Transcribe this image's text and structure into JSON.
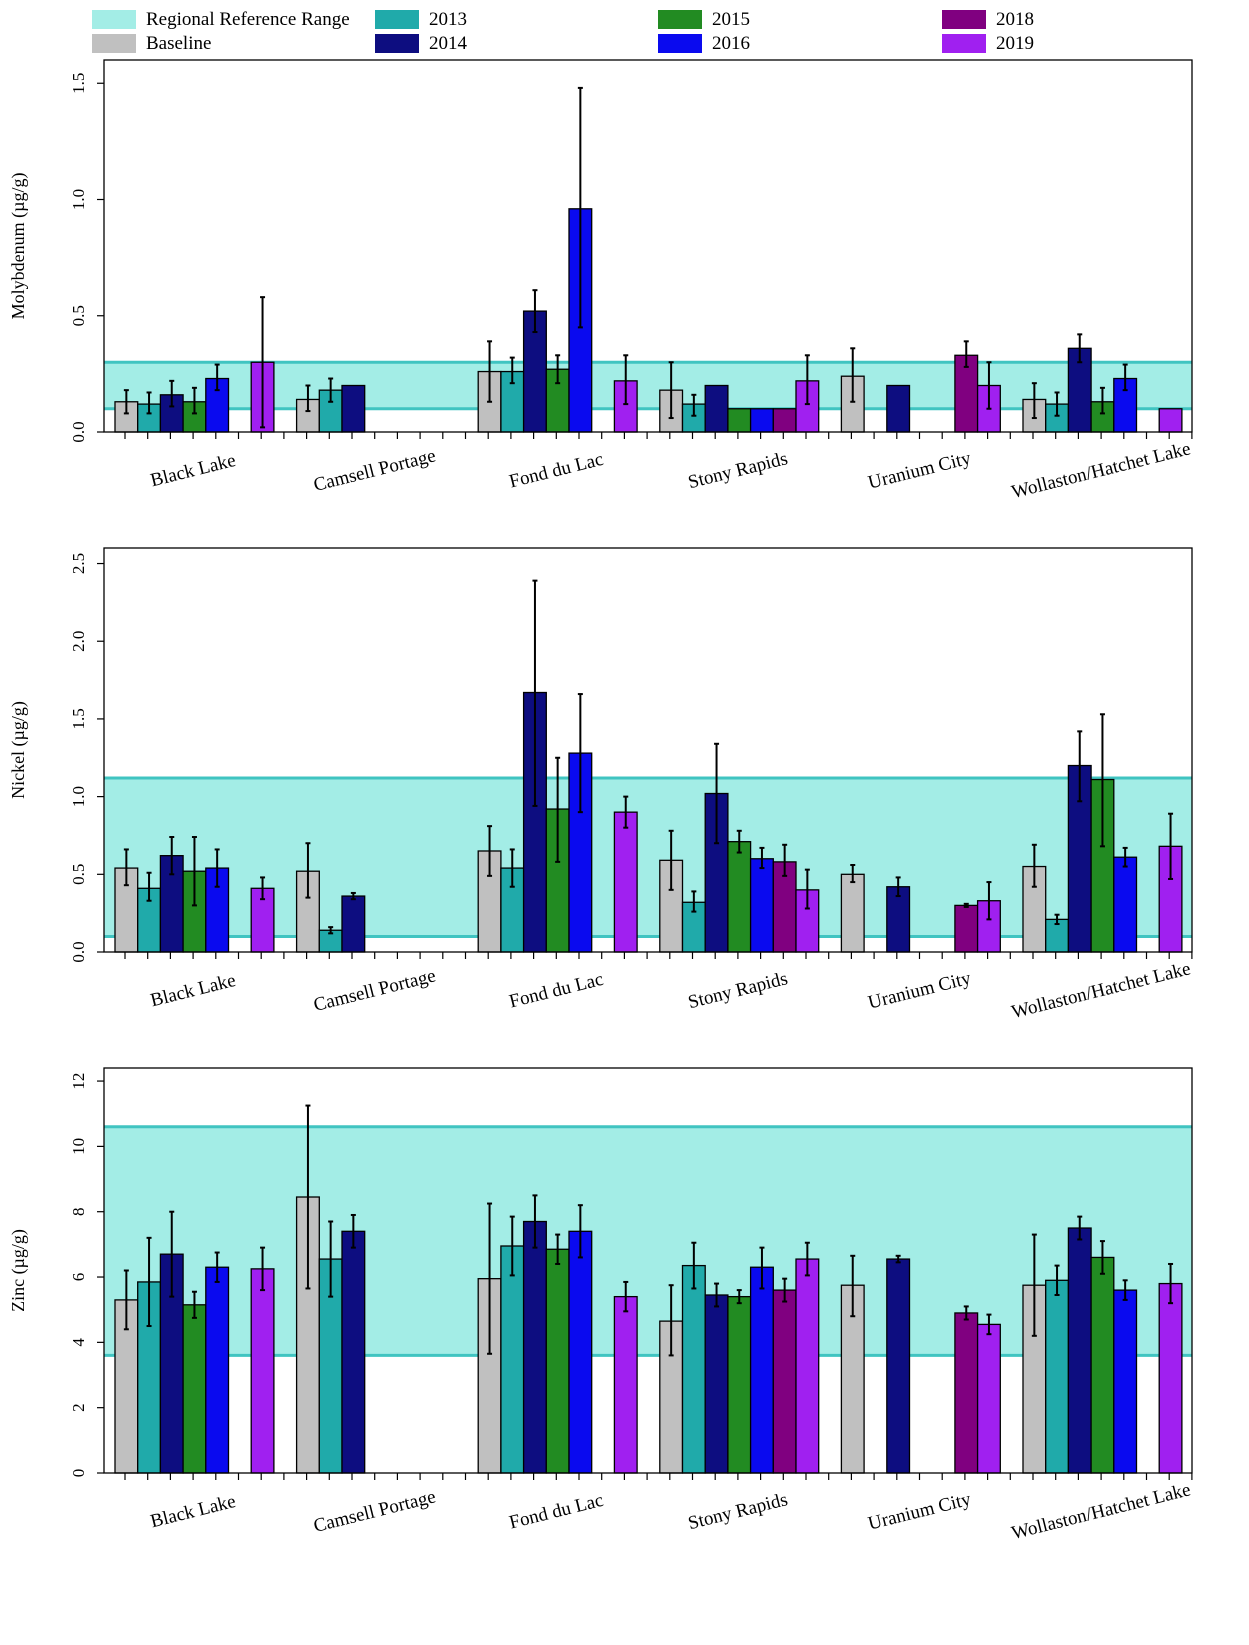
{
  "legend": {
    "reference_label": "Regional Reference Range",
    "items": [
      {
        "key": "Baseline",
        "label": "Baseline"
      },
      {
        "key": "2013",
        "label": "2013"
      },
      {
        "key": "2014",
        "label": "2014"
      },
      {
        "key": "2015",
        "label": "2015"
      },
      {
        "key": "2016",
        "label": "2016"
      },
      {
        "key": "2018",
        "label": "2018"
      },
      {
        "key": "2019",
        "label": "2019"
      }
    ]
  },
  "colors": {
    "reference_fill": "#a3ede6",
    "reference_line": "#40c4c1",
    "Baseline": "#c0c0c0",
    "2013": "#20aaaa",
    "2014": "#0d0d80",
    "2015": "#228b22",
    "2016": "#0a0aef",
    "2018": "#800080",
    "2019": "#a020f0"
  },
  "chart_data": [
    {
      "type": "bar",
      "ylabel": "Molybdenum (µg/g)",
      "ylim": [
        0,
        1.6
      ],
      "yticks": [
        0.0,
        0.5,
        1.0,
        1.5
      ],
      "ytick_labels": [
        "0.0",
        "0.5",
        "1.0",
        "1.5"
      ],
      "reference_range": [
        0.1,
        0.3
      ],
      "categories": [
        "Black Lake",
        "Camsell Portage",
        "Fond du Lac",
        "Stony Rapids",
        "Uranium City",
        "Wollaston/Hatchet Lake"
      ],
      "series": [
        {
          "name": "Baseline",
          "values": [
            0.13,
            0.14,
            0.26,
            0.18,
            0.24,
            0.14
          ],
          "err_low": [
            0.08,
            0.09,
            0.13,
            0.06,
            0.13,
            0.06
          ],
          "err_high": [
            0.18,
            0.2,
            0.39,
            0.3,
            0.36,
            0.21
          ]
        },
        {
          "name": "2013",
          "values": [
            0.12,
            0.18,
            0.26,
            0.12,
            null,
            0.12
          ],
          "err_low": [
            0.08,
            0.13,
            0.21,
            0.07,
            null,
            0.07
          ],
          "err_high": [
            0.17,
            0.23,
            0.32,
            0.16,
            null,
            0.17
          ]
        },
        {
          "name": "2014",
          "values": [
            0.16,
            0.2,
            0.52,
            0.2,
            0.2,
            0.36
          ],
          "err_low": [
            0.11,
            null,
            0.43,
            null,
            null,
            0.3
          ],
          "err_high": [
            0.22,
            null,
            0.61,
            null,
            null,
            0.42
          ]
        },
        {
          "name": "2015",
          "values": [
            0.13,
            null,
            0.27,
            0.1,
            null,
            0.13
          ],
          "err_low": [
            0.08,
            null,
            0.21,
            null,
            null,
            0.08
          ],
          "err_high": [
            0.19,
            null,
            0.33,
            null,
            null,
            0.19
          ]
        },
        {
          "name": "2016",
          "values": [
            0.23,
            null,
            0.96,
            0.1,
            null,
            0.23
          ],
          "err_low": [
            0.18,
            null,
            0.45,
            null,
            null,
            0.18
          ],
          "err_high": [
            0.29,
            null,
            1.48,
            null,
            null,
            0.29
          ]
        },
        {
          "name": "2018",
          "values": [
            null,
            null,
            null,
            0.1,
            0.33,
            null
          ],
          "err_low": [
            null,
            null,
            null,
            null,
            0.28,
            null
          ],
          "err_high": [
            null,
            null,
            null,
            null,
            0.39,
            null
          ]
        },
        {
          "name": "2019",
          "values": [
            0.3,
            null,
            0.22,
            0.22,
            0.2,
            0.1
          ],
          "err_low": [
            0.02,
            null,
            0.12,
            0.12,
            0.1,
            null
          ],
          "err_high": [
            0.58,
            null,
            0.33,
            0.33,
            0.3,
            null
          ]
        }
      ]
    },
    {
      "type": "bar",
      "ylabel": "Nickel (µg/g)",
      "ylim": [
        0,
        2.6
      ],
      "yticks": [
        0.0,
        0.5,
        1.0,
        1.5,
        2.0,
        2.5
      ],
      "ytick_labels": [
        "0.0",
        "0.5",
        "1.0",
        "1.5",
        "2.0",
        "2.5"
      ],
      "reference_range": [
        0.1,
        1.12
      ],
      "categories": [
        "Black Lake",
        "Camsell Portage",
        "Fond du Lac",
        "Stony Rapids",
        "Uranium City",
        "Wollaston/Hatchet Lake"
      ],
      "series": [
        {
          "name": "Baseline",
          "values": [
            0.54,
            0.52,
            0.65,
            0.59,
            0.5,
            0.55
          ],
          "err_low": [
            0.43,
            0.35,
            0.49,
            0.4,
            0.45,
            0.42
          ],
          "err_high": [
            0.66,
            0.7,
            0.81,
            0.78,
            0.56,
            0.69
          ]
        },
        {
          "name": "2013",
          "values": [
            0.41,
            0.14,
            0.54,
            0.32,
            null,
            0.21
          ],
          "err_low": [
            0.33,
            0.12,
            0.42,
            0.26,
            null,
            0.18
          ],
          "err_high": [
            0.51,
            0.16,
            0.66,
            0.39,
            null,
            0.24
          ]
        },
        {
          "name": "2014",
          "values": [
            0.62,
            0.36,
            1.67,
            1.02,
            0.42,
            1.2
          ],
          "err_low": [
            0.5,
            0.34,
            0.94,
            0.7,
            0.36,
            0.97
          ],
          "err_high": [
            0.74,
            0.38,
            2.39,
            1.34,
            0.48,
            1.42
          ]
        },
        {
          "name": "2015",
          "values": [
            0.52,
            null,
            0.92,
            0.71,
            null,
            1.11
          ],
          "err_low": [
            0.3,
            null,
            0.58,
            0.64,
            null,
            0.68
          ],
          "err_high": [
            0.74,
            null,
            1.25,
            0.78,
            null,
            1.53
          ]
        },
        {
          "name": "2016",
          "values": [
            0.54,
            null,
            1.28,
            0.6,
            null,
            0.61
          ],
          "err_low": [
            0.42,
            null,
            0.9,
            0.54,
            null,
            0.55
          ],
          "err_high": [
            0.66,
            null,
            1.66,
            0.67,
            null,
            0.67
          ]
        },
        {
          "name": "2018",
          "values": [
            null,
            null,
            null,
            0.58,
            0.3,
            null
          ],
          "err_low": [
            null,
            null,
            null,
            0.49,
            0.29,
            null
          ],
          "err_high": [
            null,
            null,
            null,
            0.69,
            0.31,
            null
          ]
        },
        {
          "name": "2019",
          "values": [
            0.41,
            null,
            0.9,
            0.4,
            0.33,
            0.68
          ],
          "err_low": [
            0.34,
            null,
            0.8,
            0.28,
            0.21,
            0.47
          ],
          "err_high": [
            0.48,
            null,
            1.0,
            0.53,
            0.45,
            0.89
          ]
        }
      ]
    },
    {
      "type": "bar",
      "ylabel": "Zinc (µg/g)",
      "ylim": [
        0,
        12.4
      ],
      "yticks": [
        0,
        2,
        4,
        6,
        8,
        10,
        12
      ],
      "ytick_labels": [
        "0",
        "2",
        "4",
        "6",
        "8",
        "10",
        "12"
      ],
      "reference_range": [
        3.6,
        10.6
      ],
      "categories": [
        "Black Lake",
        "Camsell Portage",
        "Fond du Lac",
        "Stony Rapids",
        "Uranium City",
        "Wollaston/Hatchet Lake"
      ],
      "series": [
        {
          "name": "Baseline",
          "values": [
            5.3,
            8.45,
            5.95,
            4.65,
            5.75,
            5.75
          ],
          "err_low": [
            4.4,
            5.65,
            3.65,
            3.6,
            4.8,
            4.2
          ],
          "err_high": [
            6.2,
            11.25,
            8.25,
            5.75,
            6.65,
            7.3
          ]
        },
        {
          "name": "2013",
          "values": [
            5.85,
            6.55,
            6.95,
            6.35,
            null,
            5.9
          ],
          "err_low": [
            4.5,
            5.4,
            6.05,
            5.65,
            null,
            5.45
          ],
          "err_high": [
            7.2,
            7.7,
            7.85,
            7.05,
            null,
            6.35
          ]
        },
        {
          "name": "2014",
          "values": [
            6.7,
            7.4,
            7.7,
            5.45,
            6.55,
            7.5
          ],
          "err_low": [
            5.4,
            6.9,
            6.9,
            5.1,
            6.45,
            7.15
          ],
          "err_high": [
            8.0,
            7.9,
            8.5,
            5.8,
            6.65,
            7.85
          ]
        },
        {
          "name": "2015",
          "values": [
            5.15,
            null,
            6.85,
            5.4,
            null,
            6.6
          ],
          "err_low": [
            4.75,
            null,
            6.4,
            5.2,
            null,
            6.1
          ],
          "err_high": [
            5.55,
            null,
            7.3,
            5.6,
            null,
            7.1
          ]
        },
        {
          "name": "2016",
          "values": [
            6.3,
            null,
            7.4,
            6.3,
            null,
            5.6
          ],
          "err_low": [
            5.85,
            null,
            6.6,
            5.65,
            null,
            5.3
          ],
          "err_high": [
            6.75,
            null,
            8.2,
            6.9,
            null,
            5.9
          ]
        },
        {
          "name": "2018",
          "values": [
            null,
            null,
            null,
            5.6,
            4.9,
            null
          ],
          "err_low": [
            null,
            null,
            null,
            5.25,
            4.7,
            null
          ],
          "err_high": [
            null,
            null,
            null,
            5.95,
            5.1,
            null
          ]
        },
        {
          "name": "2019",
          "values": [
            6.25,
            null,
            5.4,
            6.55,
            4.55,
            5.8
          ],
          "err_low": [
            5.6,
            null,
            4.95,
            6.05,
            4.25,
            5.2
          ],
          "err_high": [
            6.9,
            null,
            5.85,
            7.05,
            4.85,
            6.4
          ]
        }
      ]
    }
  ]
}
